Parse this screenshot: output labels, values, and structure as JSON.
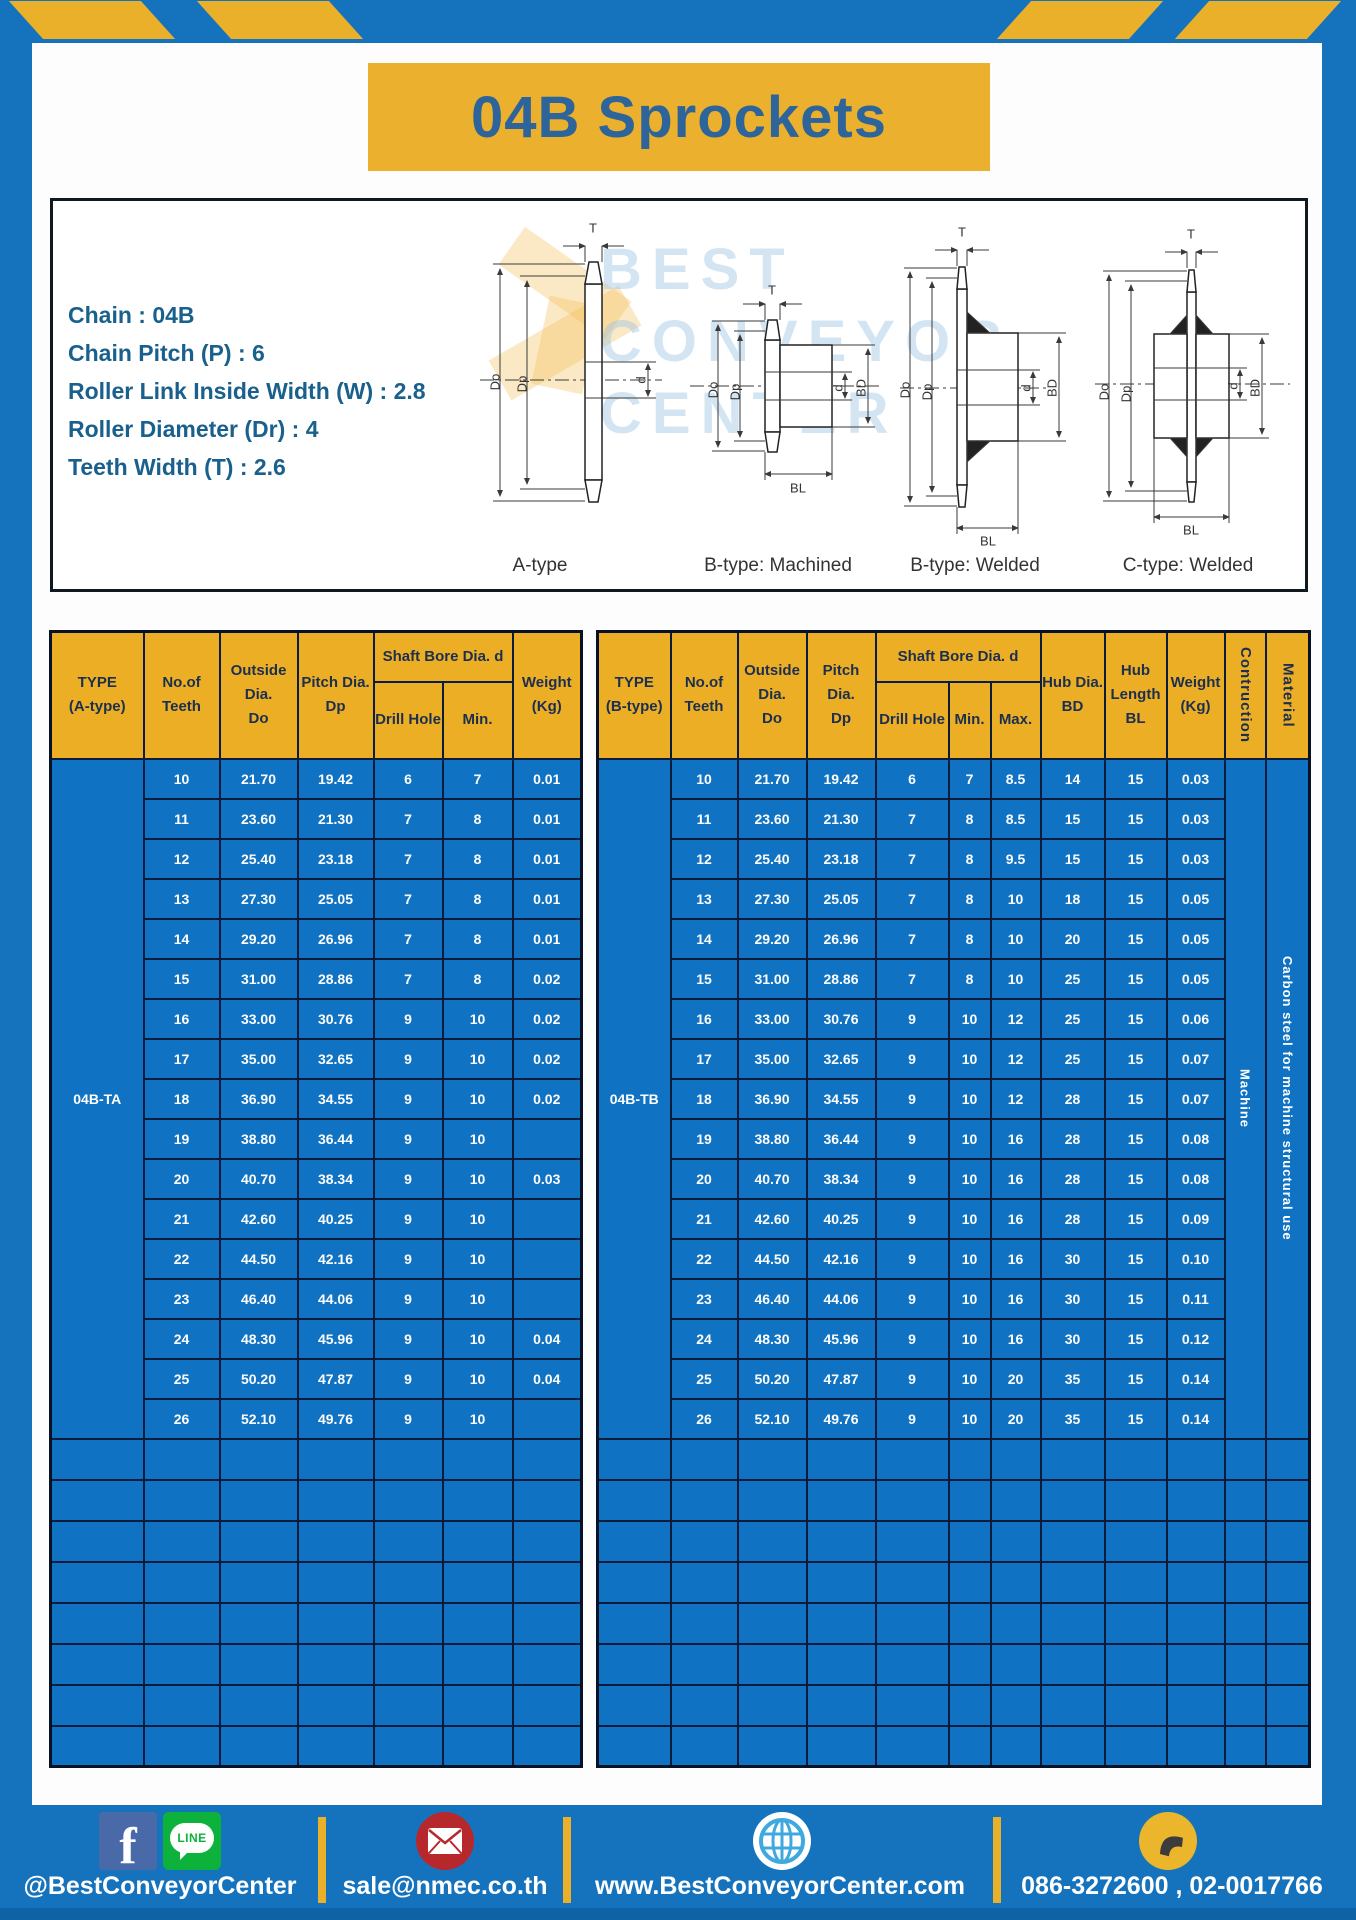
{
  "page": {
    "title": "04B Sprockets"
  },
  "specs": {
    "lines": [
      "Chain : 04B",
      "Chain Pitch (P) : 6",
      "Roller Link Inside Width (W) : 2.8",
      "Roller Diameter (Dr) : 4",
      "Teeth Width (T) : 2.6"
    ]
  },
  "watermark": {
    "lines": [
      "BEST",
      "CONVEYOR",
      "CENTER"
    ]
  },
  "diagram": {
    "dim": {
      "t": "T",
      "do": "Do",
      "dp": "Dp",
      "d": "d",
      "bd": "BD",
      "bl": "BL"
    },
    "variants": [
      {
        "label": "A-type"
      },
      {
        "label": "B-type: Machined"
      },
      {
        "label": "B-type: Welded"
      },
      {
        "label": "C-type: Welded"
      }
    ]
  },
  "tables": {
    "left": {
      "type_label": "04B-TA",
      "header": {
        "type": "TYPE\n(A-type)",
        "teeth": "No.of\nTeeth",
        "outside": "Outside\nDia.\nDo",
        "pitch": "Pitch Dia.\nDp",
        "shaft_bore": "Shaft Bore Dia. d",
        "drill": "Drill Hole",
        "min": "Min.",
        "weight": "Weight\n(Kg)"
      },
      "rows": [
        [
          "10",
          "21.70",
          "19.42",
          "6",
          "7",
          "0.01"
        ],
        [
          "11",
          "23.60",
          "21.30",
          "7",
          "8",
          "0.01"
        ],
        [
          "12",
          "25.40",
          "23.18",
          "7",
          "8",
          "0.01"
        ],
        [
          "13",
          "27.30",
          "25.05",
          "7",
          "8",
          "0.01"
        ],
        [
          "14",
          "29.20",
          "26.96",
          "7",
          "8",
          "0.01"
        ],
        [
          "15",
          "31.00",
          "28.86",
          "7",
          "8",
          "0.02"
        ],
        [
          "16",
          "33.00",
          "30.76",
          "9",
          "10",
          "0.02"
        ],
        [
          "17",
          "35.00",
          "32.65",
          "9",
          "10",
          "0.02"
        ],
        [
          "18",
          "36.90",
          "34.55",
          "9",
          "10",
          "0.02"
        ],
        [
          "19",
          "38.80",
          "36.44",
          "9",
          "10",
          ""
        ],
        [
          "20",
          "40.70",
          "38.34",
          "9",
          "10",
          "0.03"
        ],
        [
          "21",
          "42.60",
          "40.25",
          "9",
          "10",
          ""
        ],
        [
          "22",
          "44.50",
          "42.16",
          "9",
          "10",
          ""
        ],
        [
          "23",
          "46.40",
          "44.06",
          "9",
          "10",
          ""
        ],
        [
          "24",
          "48.30",
          "45.96",
          "9",
          "10",
          "0.04"
        ],
        [
          "25",
          "50.20",
          "47.87",
          "9",
          "10",
          "0.04"
        ],
        [
          "26",
          "52.10",
          "49.76",
          "9",
          "10",
          ""
        ]
      ],
      "empty_rows": 8
    },
    "right": {
      "type_label": "04B-TB",
      "header": {
        "type": "TYPE\n(B-type)",
        "teeth": "No.of\nTeeth",
        "outside": "Outside\nDia.\nDo",
        "pitch": "Pitch Dia.\nDp",
        "shaft_bore": "Shaft Bore Dia. d",
        "drill": "Drill Hole",
        "min": "Min.",
        "max": "Max.",
        "hub_dia": "Hub Dia.\nBD",
        "hub_len": "Hub\nLength\nBL",
        "weight": "Weight\n(Kg)",
        "contruction": "Contruction",
        "material": "Material"
      },
      "rows": [
        [
          "10",
          "21.70",
          "19.42",
          "6",
          "7",
          "8.5",
          "14",
          "15",
          "0.03"
        ],
        [
          "11",
          "23.60",
          "21.30",
          "7",
          "8",
          "8.5",
          "15",
          "15",
          "0.03"
        ],
        [
          "12",
          "25.40",
          "23.18",
          "7",
          "8",
          "9.5",
          "15",
          "15",
          "0.03"
        ],
        [
          "13",
          "27.30",
          "25.05",
          "7",
          "8",
          "10",
          "18",
          "15",
          "0.05"
        ],
        [
          "14",
          "29.20",
          "26.96",
          "7",
          "8",
          "10",
          "20",
          "15",
          "0.05"
        ],
        [
          "15",
          "31.00",
          "28.86",
          "7",
          "8",
          "10",
          "25",
          "15",
          "0.05"
        ],
        [
          "16",
          "33.00",
          "30.76",
          "9",
          "10",
          "12",
          "25",
          "15",
          "0.06"
        ],
        [
          "17",
          "35.00",
          "32.65",
          "9",
          "10",
          "12",
          "25",
          "15",
          "0.07"
        ],
        [
          "18",
          "36.90",
          "34.55",
          "9",
          "10",
          "12",
          "28",
          "15",
          "0.07"
        ],
        [
          "19",
          "38.80",
          "36.44",
          "9",
          "10",
          "16",
          "28",
          "15",
          "0.08"
        ],
        [
          "20",
          "40.70",
          "38.34",
          "9",
          "10",
          "16",
          "28",
          "15",
          "0.08"
        ],
        [
          "21",
          "42.60",
          "40.25",
          "9",
          "10",
          "16",
          "28",
          "15",
          "0.09"
        ],
        [
          "22",
          "44.50",
          "42.16",
          "9",
          "10",
          "16",
          "30",
          "15",
          "0.10"
        ],
        [
          "23",
          "46.40",
          "44.06",
          "9",
          "10",
          "16",
          "30",
          "15",
          "0.11"
        ],
        [
          "24",
          "48.30",
          "45.96",
          "9",
          "10",
          "16",
          "30",
          "15",
          "0.12"
        ],
        [
          "25",
          "50.20",
          "47.87",
          "9",
          "10",
          "20",
          "35",
          "15",
          "0.14"
        ],
        [
          "26",
          "52.10",
          "49.76",
          "9",
          "10",
          "20",
          "35",
          "15",
          "0.14"
        ]
      ],
      "construction_value": "Machine",
      "material_value": "Carbon steel for machine structural use",
      "empty_rows": 8
    }
  },
  "footer": {
    "social_handle": "@BestConveyorCenter",
    "email": "sale@nmec.co.th",
    "website": "www.BestConveyorCenter.com",
    "phone": "086-3272600 , 02-0017766",
    "fb_letter": "f",
    "line_label": "LINE"
  },
  "colors": {
    "accent_yellow": "#EBB02A",
    "brand_blue": "#1573BD",
    "cell_blue": "#0F72C2",
    "grid_navy": "#0A1B3B",
    "title_blue": "#2D6499",
    "facebook_blue": "#4A69A8",
    "line_green": "#0DB23C",
    "email_red": "#B7282D",
    "globe_blue": "#3FA8DF",
    "phone_yellow": "#EBB62B"
  }
}
